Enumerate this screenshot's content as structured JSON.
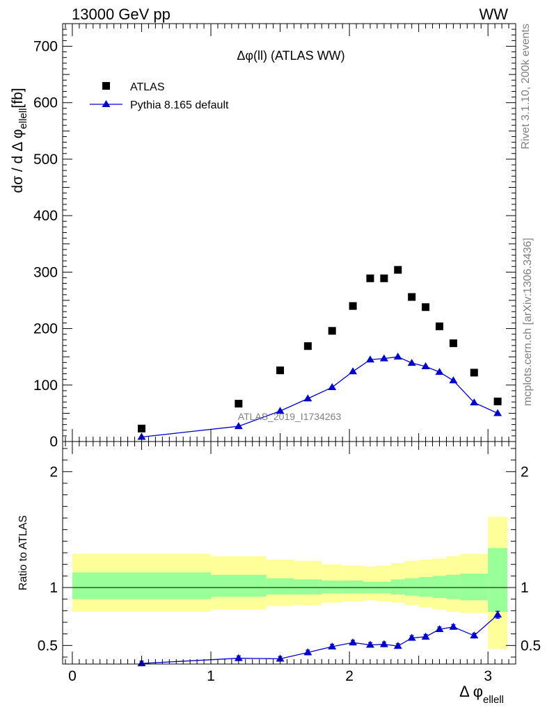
{
  "header": {
    "left": "13000 GeV pp",
    "right": "WW"
  },
  "side_labels": {
    "rivet": "Rivet 3.1.10,  200k events",
    "mcplots": "mcplots.cern.ch [arXiv:1306.3436]"
  },
  "watermark": "ATLAS_2019_I1734263",
  "chart_data": [
    {
      "type": "scatter",
      "panel": "main",
      "title": "Δφ(ll) (ATLAS WW)",
      "ylabel_main": "dσ / d Δ φ",
      "ylabel_sub": "ellell",
      "ylabel_unit": "[fb]",
      "xlim": [
        -0.07,
        3.2
      ],
      "ylim": [
        0,
        740
      ],
      "yticks": [
        0,
        100,
        200,
        300,
        400,
        500,
        600,
        700
      ],
      "tick_labels": [
        "0",
        "100",
        "200",
        "300",
        "400",
        "500",
        "600",
        "700"
      ],
      "legend_position": "top-left",
      "series": [
        {
          "name": "ATLAS",
          "marker": "square",
          "color": "#000000",
          "x": [
            0.5,
            1.2,
            1.5,
            1.7,
            1.875,
            2.025,
            2.15,
            2.25,
            2.35,
            2.45,
            2.55,
            2.65,
            2.75,
            2.9,
            3.07
          ],
          "y": [
            23,
            67,
            126,
            169,
            196,
            240,
            289,
            289,
            304,
            256,
            238,
            204,
            174,
            122,
            71
          ]
        },
        {
          "name": "Pythia 8.165 default",
          "marker": "triangle",
          "line": true,
          "color": "#0000cc",
          "x": [
            0.5,
            1.2,
            1.5,
            1.7,
            1.875,
            2.025,
            2.15,
            2.25,
            2.35,
            2.45,
            2.55,
            2.65,
            2.75,
            2.9,
            3.07
          ],
          "y": [
            8,
            27,
            54,
            76,
            96,
            124,
            145,
            147,
            150,
            139,
            133,
            123,
            108,
            69,
            50
          ]
        }
      ]
    },
    {
      "type": "line",
      "panel": "ratio",
      "ylabel": "Ratio to ATLAS",
      "xlabel_main": "Δ φ",
      "xlabel_sub": "ellell",
      "xlim": [
        -0.07,
        3.2
      ],
      "ylim": [
        0.34,
        2.26
      ],
      "yticks": [
        0.5,
        1,
        2
      ],
      "ytick_labels": [
        "0.5",
        "1",
        "2"
      ],
      "xticks": [
        0,
        1,
        2,
        3
      ],
      "xtick_labels": [
        "0",
        "1",
        "2",
        "3"
      ],
      "reference_line": 1,
      "bands": {
        "colors": {
          "outer": "#ffff99",
          "inner": "#99ff99"
        },
        "bins": [
          {
            "x0": 0.0,
            "x1": 1.0,
            "outer": [
              0.79,
              1.29
            ],
            "inner": [
              0.9,
              1.13
            ]
          },
          {
            "x0": 1.0,
            "x1": 1.4,
            "outer": [
              0.81,
              1.27
            ],
            "inner": [
              0.92,
              1.11
            ]
          },
          {
            "x0": 1.4,
            "x1": 1.6,
            "outer": [
              0.84,
              1.24
            ],
            "inner": [
              0.94,
              1.08
            ]
          },
          {
            "x0": 1.6,
            "x1": 1.8,
            "outer": [
              0.85,
              1.23
            ],
            "inner": [
              0.94,
              1.07
            ]
          },
          {
            "x0": 1.8,
            "x1": 1.95,
            "outer": [
              0.87,
              1.2
            ],
            "inner": [
              0.95,
              1.06
            ]
          },
          {
            "x0": 1.95,
            "x1": 2.1,
            "outer": [
              0.88,
              1.19
            ],
            "inner": [
              0.95,
              1.06
            ]
          },
          {
            "x0": 2.1,
            "x1": 2.2,
            "outer": [
              0.89,
              1.18
            ],
            "inner": [
              0.95,
              1.05
            ]
          },
          {
            "x0": 2.2,
            "x1": 2.3,
            "outer": [
              0.88,
              1.19
            ],
            "inner": [
              0.95,
              1.05
            ]
          },
          {
            "x0": 2.3,
            "x1": 2.4,
            "outer": [
              0.87,
              1.21
            ],
            "inner": [
              0.94,
              1.07
            ]
          },
          {
            "x0": 2.4,
            "x1": 2.5,
            "outer": [
              0.85,
              1.23
            ],
            "inner": [
              0.93,
              1.08
            ]
          },
          {
            "x0": 2.5,
            "x1": 2.6,
            "outer": [
              0.83,
              1.24
            ],
            "inner": [
              0.92,
              1.09
            ]
          },
          {
            "x0": 2.6,
            "x1": 2.7,
            "outer": [
              0.81,
              1.25
            ],
            "inner": [
              0.91,
              1.1
            ]
          },
          {
            "x0": 2.7,
            "x1": 2.8,
            "outer": [
              0.79,
              1.27
            ],
            "inner": [
              0.9,
              1.11
            ]
          },
          {
            "x0": 2.8,
            "x1": 3.0,
            "outer": [
              0.78,
              1.29
            ],
            "inner": [
              0.89,
              1.12
            ]
          },
          {
            "x0": 3.0,
            "x1": 3.14,
            "outer": [
              0.47,
              1.61
            ],
            "inner": [
              0.79,
              1.34
            ]
          }
        ]
      },
      "series": [
        {
          "name": "Pythia 8.165 default",
          "color": "#0000cc",
          "x": [
            0.5,
            1.2,
            1.5,
            1.7,
            1.875,
            2.025,
            2.15,
            2.25,
            2.35,
            2.45,
            2.55,
            2.65,
            2.75,
            2.9,
            3.07
          ],
          "y": [
            0.345,
            0.39,
            0.385,
            0.44,
            0.49,
            0.525,
            0.505,
            0.51,
            0.495,
            0.565,
            0.575,
            0.64,
            0.66,
            0.585,
            0.765
          ],
          "err": [
            0.02,
            0.02,
            0.02,
            0.02,
            0.02,
            0.02,
            0.02,
            0.02,
            0.02,
            0.02,
            0.02,
            0.02,
            0.02,
            0.02,
            0.03
          ]
        }
      ]
    }
  ]
}
